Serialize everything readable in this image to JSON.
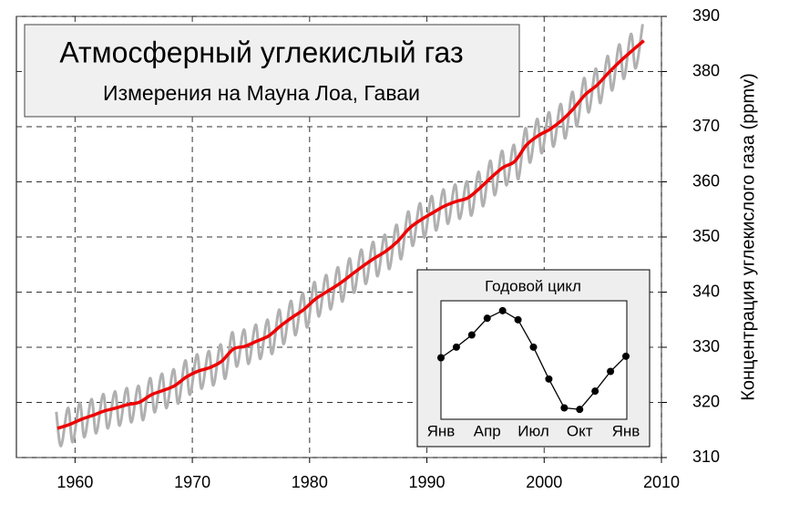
{
  "chart_data": {
    "type": "line",
    "title": "Атмосферный углекислый газ",
    "subtitle": "Измерения на Мауна Лоа, Гаваи",
    "y_label": "Концентрация углекислого газа (ppmv)",
    "xlim": [
      1955,
      2010
    ],
    "xticks": [
      1960,
      1970,
      1980,
      1990,
      2000,
      2010
    ],
    "ylim": [
      310,
      390
    ],
    "yticks": [
      310,
      320,
      330,
      340,
      350,
      360,
      370,
      380,
      390
    ],
    "grid": true,
    "series": [
      {
        "color": "#b0b0b0",
        "x": [
          1958.4,
          1958.8,
          1959.4,
          1959.8,
          1960.4,
          1960.8,
          1961.4,
          1961.8,
          1962.4,
          1962.8,
          1963.4,
          1963.8,
          1964.4,
          1964.8,
          1965.4,
          1965.8,
          1966.4,
          1966.8,
          1967.4,
          1967.8,
          1968.4,
          1968.8,
          1969.4,
          1969.8,
          1970.4,
          1970.8,
          1971.4,
          1971.8,
          1972.4,
          1972.8,
          1973.4,
          1973.8,
          1974.4,
          1974.8,
          1975.4,
          1975.8,
          1976.4,
          1976.8,
          1977.4,
          1977.8,
          1978.4,
          1978.8,
          1979.4,
          1979.8,
          1980.4,
          1980.8,
          1981.4,
          1981.8,
          1982.4,
          1982.8,
          1983.4,
          1983.8,
          1984.4,
          1984.8,
          1985.4,
          1985.8,
          1986.4,
          1986.8,
          1987.4,
          1987.8,
          1988.4,
          1988.8,
          1989.4,
          1989.8,
          1990.4,
          1990.8,
          1991.4,
          1991.8,
          1992.4,
          1992.8,
          1993.4,
          1993.8,
          1994.4,
          1994.8,
          1995.4,
          1995.8,
          1996.4,
          1996.8,
          1997.4,
          1997.8,
          1998.4,
          1998.8,
          1999.4,
          1999.8,
          2000.4,
          2000.8,
          2001.4,
          2001.8,
          2002.4,
          2002.8,
          2003.4,
          2003.8,
          2004.4,
          2004.8,
          2005.4,
          2005.8,
          2006.4,
          2006.8,
          2007.4,
          2007.8,
          2008.4
        ],
        "values": [
          318.3,
          312.1,
          319.0,
          312.8,
          319.9,
          313.7,
          320.6,
          314.4,
          321.5,
          315.3,
          322.0,
          315.8,
          322.6,
          316.4,
          323.0,
          316.8,
          324.4,
          318.2,
          325.2,
          319.0,
          326.0,
          319.8,
          327.6,
          321.4,
          328.7,
          322.5,
          329.3,
          323.1,
          330.5,
          324.3,
          332.7,
          326.5,
          333.2,
          327.0,
          334.1,
          327.9,
          335.0,
          328.8,
          336.8,
          330.6,
          338.4,
          332.2,
          339.8,
          333.6,
          341.8,
          335.6,
          343.1,
          336.9,
          344.5,
          338.3,
          346.1,
          339.9,
          347.7,
          341.5,
          349.1,
          342.9,
          350.4,
          344.2,
          352.2,
          346.0,
          354.6,
          348.4,
          356.1,
          349.9,
          357.4,
          351.2,
          358.6,
          352.4,
          359.5,
          353.3,
          360.1,
          353.9,
          361.8,
          355.6,
          363.8,
          357.6,
          365.6,
          359.4,
          366.7,
          360.5,
          369.7,
          363.5,
          371.4,
          365.2,
          372.6,
          366.4,
          374.1,
          367.9,
          376.3,
          370.1,
          378.8,
          372.6,
          380.5,
          374.3,
          382.8,
          376.6,
          384.9,
          378.7,
          386.8,
          380.6,
          388.6
        ]
      },
      {
        "color": "#ee0000",
        "x": [
          1958.5,
          1959.5,
          1960.5,
          1961.5,
          1962.5,
          1963.5,
          1964.5,
          1965.5,
          1966.5,
          1967.5,
          1968.5,
          1969.5,
          1970.5,
          1971.5,
          1972.5,
          1973.5,
          1974.5,
          1975.5,
          1976.5,
          1977.5,
          1978.5,
          1979.5,
          1980.5,
          1981.5,
          1982.5,
          1983.5,
          1984.5,
          1985.5,
          1986.5,
          1987.5,
          1988.5,
          1989.5,
          1990.5,
          1991.5,
          1992.5,
          1993.5,
          1994.5,
          1995.5,
          1996.5,
          1997.5,
          1998.5,
          1999.5,
          2000.5,
          2001.5,
          2002.5,
          2003.5,
          2004.5,
          2005.5,
          2006.5,
          2007.5,
          2008.5
        ],
        "values": [
          315.3,
          315.97,
          316.91,
          317.64,
          318.45,
          318.99,
          319.62,
          320.04,
          321.38,
          322.16,
          323.04,
          324.62,
          325.68,
          326.32,
          327.45,
          329.68,
          330.18,
          331.11,
          332.04,
          333.83,
          335.4,
          336.84,
          338.75,
          340.11,
          341.45,
          343.05,
          344.65,
          346.12,
          347.42,
          349.19,
          351.57,
          353.12,
          354.39,
          355.61,
          356.45,
          357.1,
          358.83,
          360.82,
          362.61,
          363.73,
          366.7,
          368.38,
          369.55,
          371.14,
          373.28,
          375.8,
          377.52,
          379.8,
          381.9,
          383.79,
          385.6
        ]
      }
    ],
    "inset": {
      "title": "Годовой цикл",
      "categories": [
        "Янв",
        null,
        null,
        "Апр",
        null,
        null,
        "Июл",
        null,
        null,
        "Окт",
        null,
        null,
        "Янв"
      ],
      "values": [
        0.2,
        0.9,
        1.7,
        2.8,
        3.3,
        2.7,
        0.9,
        -1.2,
        -3.1,
        -3.2,
        -2.0,
        -0.7,
        0.3
      ],
      "color": "#000000"
    }
  }
}
